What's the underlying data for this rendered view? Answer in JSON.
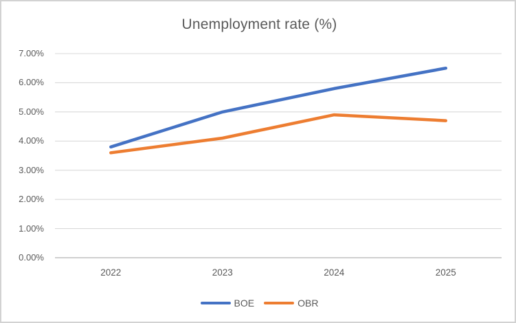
{
  "chart_data": {
    "type": "line",
    "title": "Unemployment rate (%)",
    "categories": [
      "2022",
      "2023",
      "2024",
      "2025"
    ],
    "series": [
      {
        "name": "BOE",
        "color": "#4472C4",
        "values": [
          3.8,
          5.0,
          5.8,
          6.5
        ]
      },
      {
        "name": "OBR",
        "color": "#ED7D31",
        "values": [
          3.6,
          4.1,
          4.9,
          4.7
        ]
      }
    ],
    "ylim": [
      0,
      7
    ],
    "ytick_step": 1,
    "ytick_labels": [
      "0.00%",
      "1.00%",
      "2.00%",
      "3.00%",
      "4.00%",
      "5.00%",
      "6.00%",
      "7.00%"
    ],
    "grid": "horizontal-on",
    "legend_position": "bottom-center"
  },
  "colors": {
    "gridline": "#D9D9D9",
    "axis_line": "#BFBFBF",
    "text": "#595959",
    "background": "#FFFFFF",
    "frame_border": "#D2D2D2"
  }
}
